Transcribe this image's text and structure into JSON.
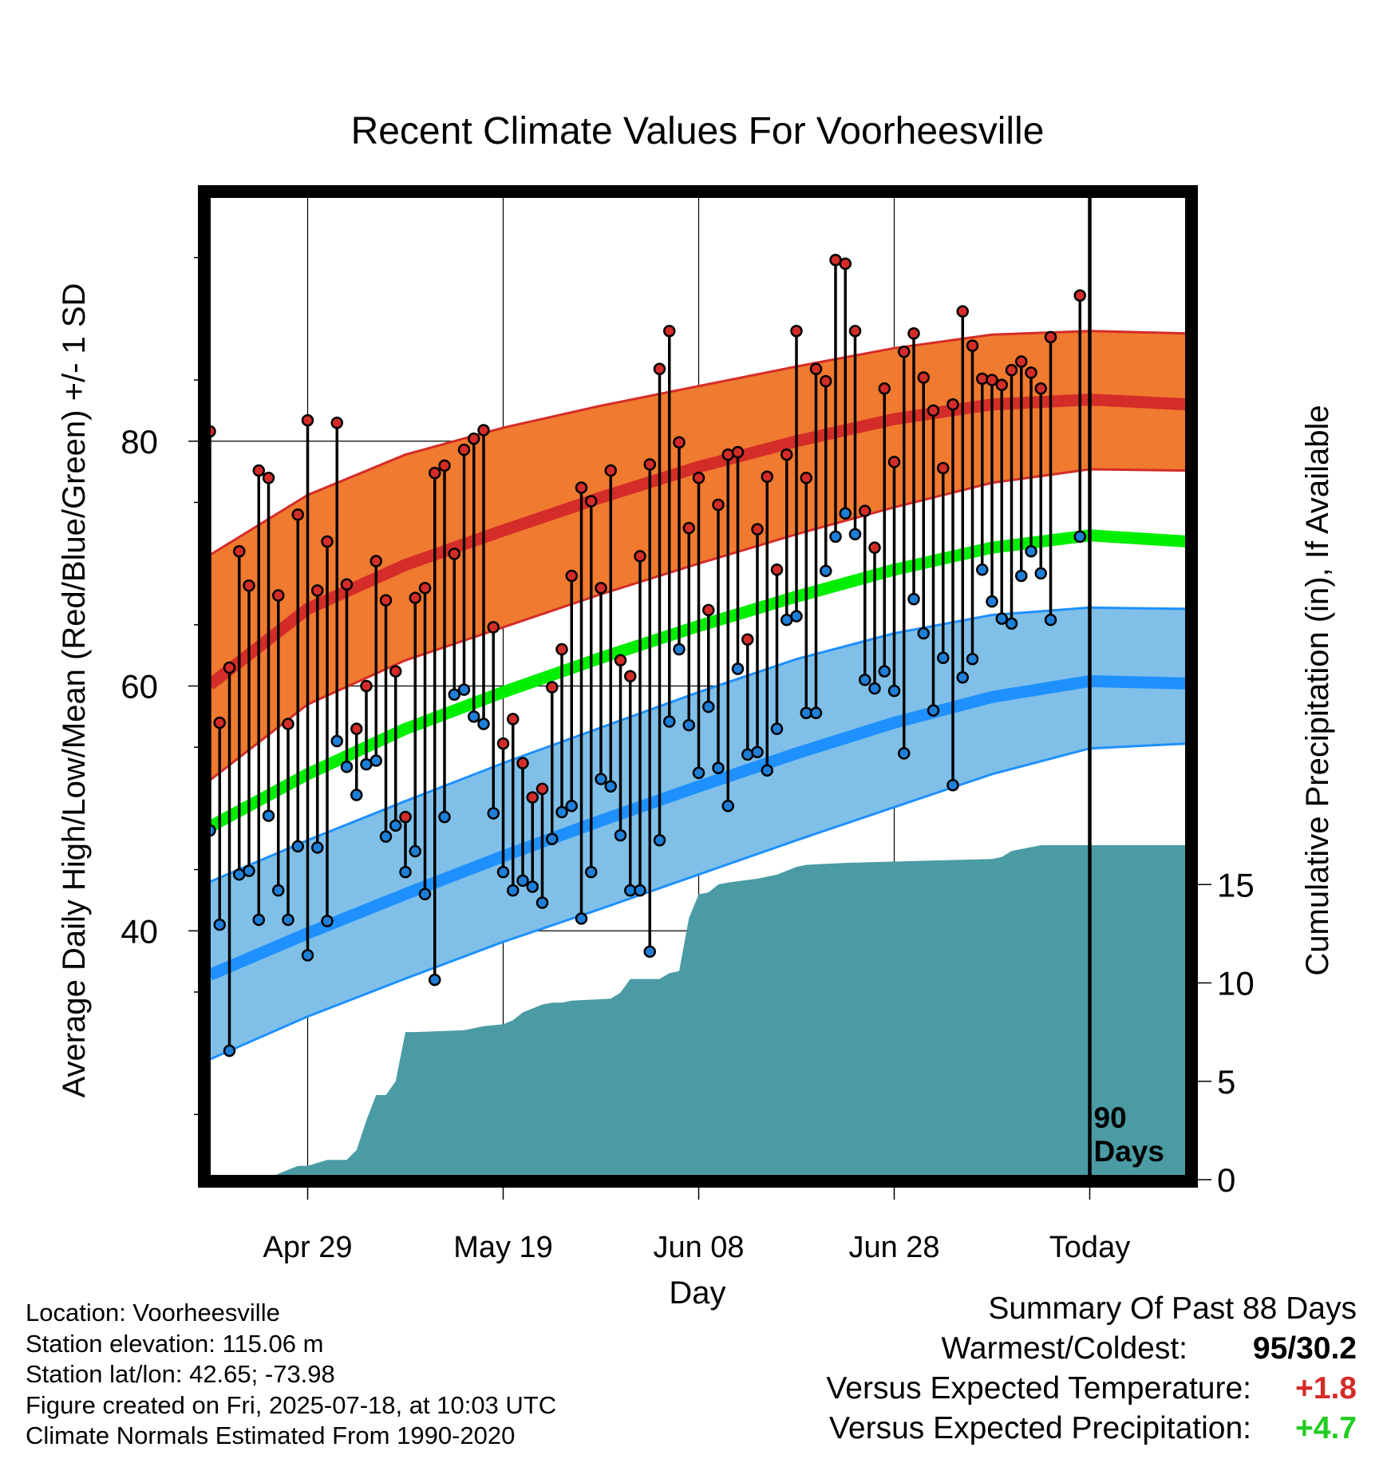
{
  "title": "Recent Climate Values For Voorheesville",
  "colors": {
    "high_band": "#f07a30",
    "high_edge": "#d42c28",
    "low_band": "#80c0e8",
    "low_edge": "#1e90ff",
    "mean_line": "#00ee00",
    "precip_fill": "#4a9ba4",
    "high_point": "#d42c28",
    "low_point": "#1e7fd8",
    "warm_text": "#d42c28",
    "wet_text": "#22cc22"
  },
  "chart_data": {
    "type": "line",
    "title": "Recent Climate Values For Voorheesville",
    "xlabel": "Day",
    "ylabel_left": "Average Daily High/Low/Mean (Red/Blue/Green) +/- 1 SD",
    "ylabel_right": "Cumulative Precipitation (in), If Available",
    "x_ticks": [
      {
        "label": "Apr 29",
        "day": 10
      },
      {
        "label": "May 19",
        "day": 30
      },
      {
        "label": "Jun 08",
        "day": 50
      },
      {
        "label": "Jun 28",
        "day": 70
      },
      {
        "label": "Today",
        "day": 90
      }
    ],
    "xlim": [
      0,
      100
    ],
    "ylim_left": [
      20,
      100
    ],
    "y_ticks_left": [
      40,
      60,
      80
    ],
    "ylim_right": [
      0,
      40
    ],
    "y_ticks_right": [
      0,
      5,
      10,
      15
    ],
    "today_marker_label": [
      "90",
      "Days"
    ],
    "normals": {
      "day": [
        0,
        10,
        20,
        30,
        40,
        50,
        60,
        70,
        80,
        90,
        100
      ],
      "high_mean": [
        60.1,
        66.3,
        69.9,
        72.7,
        75.4,
        77.9,
        80.0,
        81.8,
        83.0,
        83.4,
        83.0
      ],
      "high_minus_sd": [
        52.3,
        58.5,
        62.1,
        64.8,
        67.5,
        70.0,
        72.4,
        74.6,
        76.6,
        77.7,
        77.6
      ],
      "high_plus_sd": [
        70.7,
        75.6,
        78.9,
        81.1,
        82.9,
        84.5,
        86.1,
        87.6,
        88.7,
        89.0,
        88.8
      ],
      "mean": [
        48.5,
        52.8,
        56.5,
        59.5,
        62.3,
        64.9,
        67.3,
        69.5,
        71.3,
        72.3,
        71.8
      ],
      "low_mean": [
        36.4,
        39.8,
        43.0,
        46.1,
        49.0,
        51.8,
        54.5,
        57.0,
        59.1,
        60.4,
        60.2
      ],
      "low_minus_sd": [
        29.5,
        33.0,
        36.1,
        39.1,
        41.8,
        44.6,
        47.4,
        50.1,
        52.8,
        54.9,
        55.3
      ],
      "low_plus_sd": [
        44.0,
        47.4,
        50.6,
        53.7,
        56.6,
        59.5,
        62.2,
        64.3,
        65.8,
        66.4,
        66.3
      ]
    },
    "daily": {
      "day": [
        0,
        1,
        2,
        3,
        4,
        5,
        6,
        7,
        8,
        9,
        10,
        11,
        12,
        13,
        14,
        15,
        16,
        17,
        18,
        19,
        20,
        21,
        22,
        23,
        24,
        25,
        26,
        27,
        28,
        29,
        30,
        31,
        32,
        33,
        34,
        35,
        36,
        37,
        38,
        39,
        40,
        41,
        42,
        43,
        44,
        45,
        46,
        47,
        48,
        49,
        50,
        51,
        52,
        53,
        54,
        55,
        56,
        57,
        58,
        59,
        60,
        61,
        62,
        63,
        64,
        65,
        66,
        67,
        68,
        69,
        70,
        71,
        72,
        73,
        74,
        75,
        76,
        77,
        78,
        79,
        80,
        81,
        82,
        83,
        84,
        85,
        86,
        89
      ],
      "high": [
        80.8,
        57.0,
        61.5,
        71.0,
        68.2,
        77.6,
        77.0,
        67.4,
        56.9,
        74.0,
        81.7,
        67.8,
        71.8,
        81.5,
        68.3,
        56.5,
        60.0,
        70.2,
        67.0,
        61.2,
        49.3,
        67.2,
        68.0,
        77.4,
        78.0,
        70.8,
        79.3,
        80.2,
        80.9,
        64.8,
        55.3,
        57.3,
        53.7,
        50.9,
        51.6,
        59.9,
        63.0,
        69.0,
        76.2,
        75.1,
        68.0,
        77.6,
        62.1,
        60.8,
        70.6,
        78.1,
        85.9,
        89.0,
        79.9,
        72.9,
        77.0,
        66.2,
        74.8,
        78.9,
        79.1,
        63.8,
        72.8,
        77.1,
        69.5,
        78.9,
        89.0,
        77.0,
        85.9,
        84.9,
        94.8,
        94.5,
        89.0,
        74.3,
        71.3,
        84.3,
        78.3,
        87.3,
        88.8,
        85.2,
        82.5,
        77.8,
        83.0,
        90.6,
        87.8,
        85.1,
        85.0,
        84.6,
        85.8,
        86.5,
        85.6,
        84.3,
        88.5,
        91.9
      ],
      "low": [
        48.2,
        40.5,
        30.2,
        44.6,
        44.9,
        40.9,
        49.4,
        43.3,
        40.9,
        46.9,
        38.0,
        46.8,
        40.8,
        55.5,
        53.4,
        51.1,
        53.6,
        53.9,
        47.7,
        48.6,
        44.8,
        46.5,
        43.0,
        36.0,
        49.3,
        59.3,
        59.7,
        57.5,
        56.9,
        49.6,
        44.8,
        43.3,
        44.1,
        43.6,
        42.3,
        47.5,
        49.7,
        50.2,
        41.0,
        44.8,
        52.4,
        51.8,
        47.8,
        43.3,
        43.3,
        38.3,
        47.4,
        57.1,
        63.0,
        56.8,
        52.9,
        58.3,
        53.3,
        50.2,
        61.4,
        54.4,
        54.6,
        53.1,
        56.5,
        65.4,
        65.7,
        57.8,
        57.8,
        69.4,
        72.2,
        74.1,
        72.4,
        60.5,
        59.8,
        61.2,
        59.6,
        54.5,
        67.1,
        64.3,
        58.0,
        62.3,
        51.9,
        60.7,
        62.2,
        69.5,
        66.9,
        65.5,
        65.1,
        69.0,
        71.0,
        69.2,
        65.4,
        72.2
      ]
    },
    "cumulative_precip": {
      "day": [
        0,
        6,
        7,
        9,
        10,
        12,
        14,
        15,
        16,
        17,
        18,
        19,
        20,
        21,
        26,
        28,
        30,
        31,
        32,
        33,
        34,
        35,
        36,
        37,
        41,
        42,
        43,
        46,
        47,
        48,
        49,
        50,
        51,
        52,
        53,
        56,
        58,
        60,
        61,
        65,
        80,
        81,
        82,
        84,
        85,
        86,
        100
      ],
      "inches": [
        0,
        0,
        0.3,
        0.7,
        0.7,
        1.0,
        1.0,
        1.5,
        3.0,
        4.3,
        4.3,
        5.0,
        7.5,
        7.5,
        7.6,
        7.8,
        7.9,
        8.1,
        8.5,
        8.7,
        8.9,
        9.0,
        9.0,
        9.1,
        9.2,
        9.5,
        10.2,
        10.2,
        10.5,
        10.6,
        13.3,
        14.5,
        14.6,
        15.0,
        15.1,
        15.3,
        15.5,
        15.9,
        16.0,
        16.1,
        16.3,
        16.4,
        16.7,
        16.9,
        17.0,
        17.0,
        17.0
      ]
    }
  },
  "info": {
    "location": "Location: Voorheesville",
    "elevation": "Station elevation: 115.06 m",
    "latlon": "Station lat/lon: 42.65; -73.98",
    "created": "Figure created on Fri, 2025-07-18, at 10:03 UTC",
    "normals": "Climate Normals Estimated From 1990-2020"
  },
  "summary": {
    "title": "Summary Of Past 88 Days",
    "warmest_label": "Warmest/Coldest:",
    "warmest_value": "95/30.2",
    "temp_label": "Versus Expected Temperature:",
    "temp_value": "+1.8",
    "precip_label": "Versus Expected Precipitation:",
    "precip_value": "+4.7"
  }
}
